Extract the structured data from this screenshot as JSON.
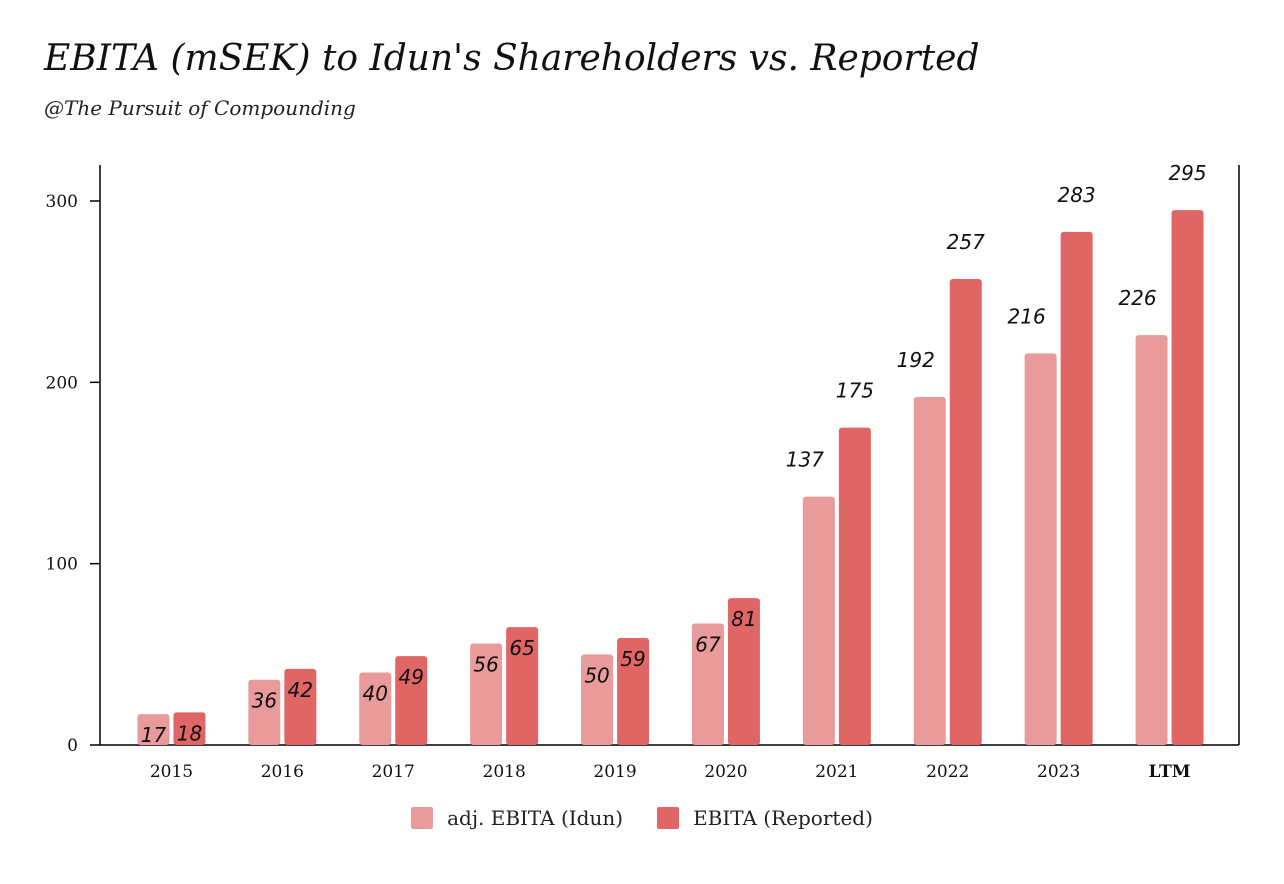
{
  "title": "EBITA (mSEK) to Idun's Shareholders vs. Reported",
  "subtitle": "@The Pursuit of Compounding",
  "chart_data": {
    "type": "bar",
    "categories": [
      "2015",
      "2016",
      "2017",
      "2018",
      "2019",
      "2020",
      "2021",
      "2022",
      "2023",
      "LTM"
    ],
    "series": [
      {
        "name": "adj. EBITA (Idun)",
        "color": "#e99a9a",
        "values": [
          17,
          36,
          40,
          56,
          50,
          67,
          137,
          192,
          216,
          226
        ]
      },
      {
        "name": "EBITA (Reported)",
        "color": "#e06666",
        "values": [
          18,
          42,
          49,
          65,
          59,
          81,
          175,
          257,
          283,
          295
        ]
      }
    ],
    "ylim": [
      0,
      320
    ],
    "yticks": [
      0,
      100,
      200,
      300
    ],
    "legend_position": "bottom-center",
    "grid": false
  }
}
